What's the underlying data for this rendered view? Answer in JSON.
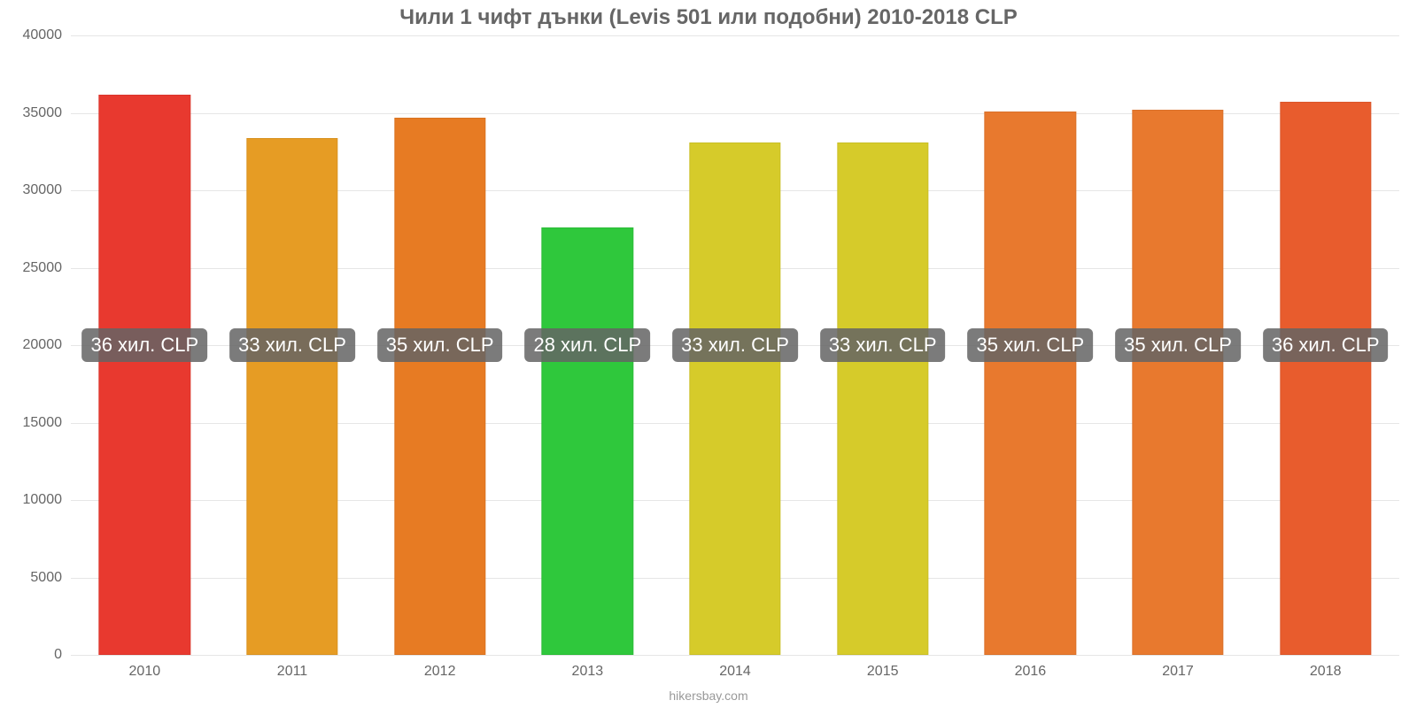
{
  "chart": {
    "type": "bar",
    "title": "Чили 1 чифт дънки (Levis 501 или подобни) 2010-2018 CLP",
    "title_fontsize": 24,
    "title_color": "#666666",
    "background_color": "#ffffff",
    "grid_color": "#e6e6e6",
    "axis_label_color": "#666666",
    "tick_fontsize": 16,
    "ylim": [
      0,
      40000
    ],
    "yticks": [
      0,
      5000,
      10000,
      15000,
      20000,
      25000,
      30000,
      35000,
      40000
    ],
    "bar_width_ratio": 0.62,
    "data": [
      {
        "category": "2010",
        "value": 36200,
        "label": "36 хил. CLP",
        "color": "#e8392f"
      },
      {
        "category": "2011",
        "value": 33400,
        "label": "33 хил. CLP",
        "color": "#e69c24"
      },
      {
        "category": "2012",
        "value": 34700,
        "label": "35 хил. CLP",
        "color": "#e77b23"
      },
      {
        "category": "2013",
        "value": 27600,
        "label": "28 хил. CLP",
        "color": "#2fc83c"
      },
      {
        "category": "2014",
        "value": 33100,
        "label": "33 хил. CLP",
        "color": "#d6cb2a"
      },
      {
        "category": "2015",
        "value": 33100,
        "label": "33 хил. CLP",
        "color": "#d6cb2a"
      },
      {
        "category": "2016",
        "value": 35100,
        "label": "35 хил. CLP",
        "color": "#e8792e"
      },
      {
        "category": "2017",
        "value": 35200,
        "label": "35 хил. CLP",
        "color": "#e8792e"
      },
      {
        "category": "2018",
        "value": 35700,
        "label": "36 хил. CLP",
        "color": "#e85c2d"
      }
    ],
    "value_label_bg": "rgba(100,100,100,0.85)",
    "value_label_color": "#ffffff",
    "value_label_fontsize": 22,
    "attribution": "hikersbay.com",
    "attribution_fontsize": 14,
    "attribution_color": "#999999"
  }
}
